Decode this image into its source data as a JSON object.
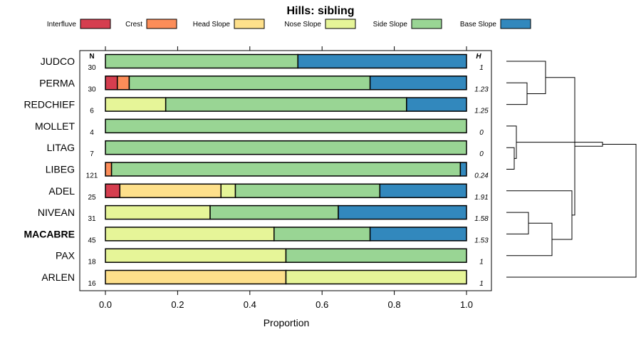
{
  "chart_data": {
    "type": "bar",
    "orientation": "horizontal",
    "stacked": true,
    "title": "Hills: sibling",
    "xlabel": "Proportion",
    "ylabel": "",
    "xlim": [
      0,
      1
    ],
    "x_ticks": [
      "0.0",
      "0.2",
      "0.4",
      "0.6",
      "0.8",
      "1.0"
    ],
    "n_header": "N",
    "h_header": "H",
    "legend": [
      "Interfluve",
      "Crest",
      "Head Slope",
      "Nose Slope",
      "Side Slope",
      "Base Slope"
    ],
    "colors": [
      "#d53e4f",
      "#fc8d59",
      "#fee08b",
      "#e6f598",
      "#99d594",
      "#3288bd"
    ],
    "categories": [
      "JUDCO",
      "PERMA",
      "REDCHIEF",
      "MOLLET",
      "LITAG",
      "LIBEG",
      "ADEL",
      "NIVEAN",
      "MACABRE",
      "PAX",
      "ARLEN"
    ],
    "highlight": "MACABRE",
    "n": [
      "30",
      "30",
      "6",
      "4",
      "7",
      "121",
      "25",
      "31",
      "45",
      "18",
      "16"
    ],
    "h": [
      "1",
      "1.23",
      "1.25",
      "0",
      "0",
      "0.24",
      "1.91",
      "1.58",
      "1.53",
      "1",
      "1"
    ],
    "values": [
      [
        0,
        0,
        0,
        0,
        0.533,
        0.467
      ],
      [
        0.033,
        0.033,
        0,
        0,
        0.667,
        0.267
      ],
      [
        0,
        0,
        0,
        0.167,
        0.667,
        0.166
      ],
      [
        0,
        0,
        0,
        0,
        1,
        0
      ],
      [
        0,
        0,
        0,
        0,
        1,
        0
      ],
      [
        0,
        0.017,
        0,
        0,
        0.966,
        0.017
      ],
      [
        0.04,
        0,
        0.28,
        0.04,
        0.4,
        0.24
      ],
      [
        0,
        0,
        0,
        0.29,
        0.355,
        0.355
      ],
      [
        0,
        0,
        0,
        0.467,
        0.266,
        0.267
      ],
      [
        0,
        0,
        0,
        0.5,
        0.5,
        0
      ],
      [
        0,
        0,
        0.5,
        0.5,
        0,
        0
      ]
    ],
    "dendrogram": {
      "merges": [
        [
          "LITAG",
          "LIBEG"
        ],
        [
          "MOLLET",
          1
        ],
        [
          "NIVEAN",
          "MACABRE"
        ],
        [
          "PERMA",
          "REDCHIEF"
        ],
        [
          3,
          "PAX"
        ],
        [
          "JUDCO",
          4
        ],
        [
          "ADEL",
          5
        ],
        [
          6,
          7
        ],
        [
          2,
          8
        ],
        [
          9,
          "ARLEN"
        ]
      ]
    }
  }
}
